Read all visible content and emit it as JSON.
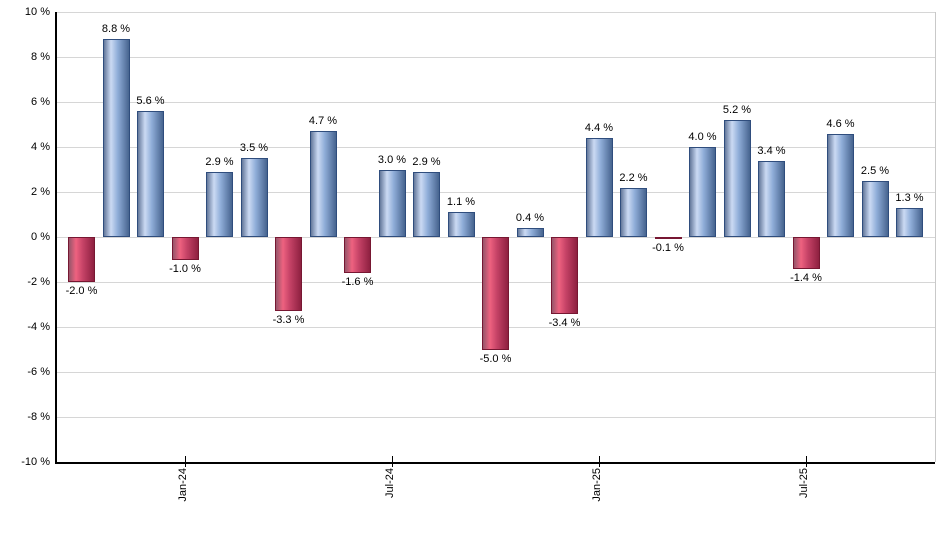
{
  "chart_data": {
    "type": "bar",
    "title": "",
    "xlabel": "",
    "ylabel": "",
    "ylim": [
      -10,
      10
    ],
    "ytick_step": 2,
    "grid": true,
    "legend": "none",
    "bars": [
      {
        "value": -2.0,
        "label": "-2.0 %"
      },
      {
        "value": 8.8,
        "label": "8.8 %"
      },
      {
        "value": 5.6,
        "label": "5.6 %"
      },
      {
        "value": -1.0,
        "label": "-1.0 %"
      },
      {
        "value": 2.9,
        "label": "2.9 %"
      },
      {
        "value": 3.5,
        "label": "3.5 %"
      },
      {
        "value": -3.3,
        "label": "-3.3 %"
      },
      {
        "value": 4.7,
        "label": "4.7 %"
      },
      {
        "value": -1.6,
        "label": "-1.6 %"
      },
      {
        "value": 3.0,
        "label": "3.0 %"
      },
      {
        "value": 2.9,
        "label": "2.9 %"
      },
      {
        "value": 1.1,
        "label": "1.1 %"
      },
      {
        "value": -5.0,
        "label": "-5.0 %"
      },
      {
        "value": 0.4,
        "label": "0.4 %"
      },
      {
        "value": -3.4,
        "label": "-3.4 %"
      },
      {
        "value": 4.4,
        "label": "4.4 %"
      },
      {
        "value": 2.2,
        "label": "2.2 %"
      },
      {
        "value": -0.1,
        "label": "-0.1 %"
      },
      {
        "value": 4.0,
        "label": "4.0 %"
      },
      {
        "value": 5.2,
        "label": "5.2 %"
      },
      {
        "value": 3.4,
        "label": "3.4 %"
      },
      {
        "value": -1.4,
        "label": "-1.4 %"
      },
      {
        "value": 4.6,
        "label": "4.6 %"
      },
      {
        "value": 2.5,
        "label": "2.5 %"
      },
      {
        "value": 1.3,
        "label": "1.3 %"
      }
    ],
    "x_ticks": [
      {
        "bar_index": 3,
        "label": "Jan-24"
      },
      {
        "bar_index": 9,
        "label": "Jul-24"
      },
      {
        "bar_index": 15,
        "label": "Jan-25"
      },
      {
        "bar_index": 21,
        "label": "Jul-25"
      }
    ],
    "y_ticks": [
      {
        "value": 10,
        "label": "10 %"
      },
      {
        "value": 8,
        "label": "8 %"
      },
      {
        "value": 6,
        "label": "6 %"
      },
      {
        "value": 4,
        "label": "4 %"
      },
      {
        "value": 2,
        "label": "2 %"
      },
      {
        "value": 0,
        "label": "0 %"
      },
      {
        "value": -2,
        "label": "-2 %"
      },
      {
        "value": -4,
        "label": "-4 %"
      },
      {
        "value": -6,
        "label": "-6 %"
      },
      {
        "value": -8,
        "label": "-8 %"
      },
      {
        "value": -10,
        "label": "-10 %"
      }
    ],
    "colors": {
      "positive": {
        "base": "#64789b",
        "highlight": "#cbdaf3",
        "mid": "#8fadd8",
        "edge": "#47648f",
        "border": "#2f4d7d"
      },
      "negative": {
        "base": "#96566a",
        "highlight": "#ee6280",
        "mid": "#c64367",
        "edge": "#8e2040",
        "border": "#771732"
      },
      "gridline": "#d6d6d6",
      "axis": "#000000",
      "label_text": "#000000",
      "background": "#ffffff"
    }
  }
}
